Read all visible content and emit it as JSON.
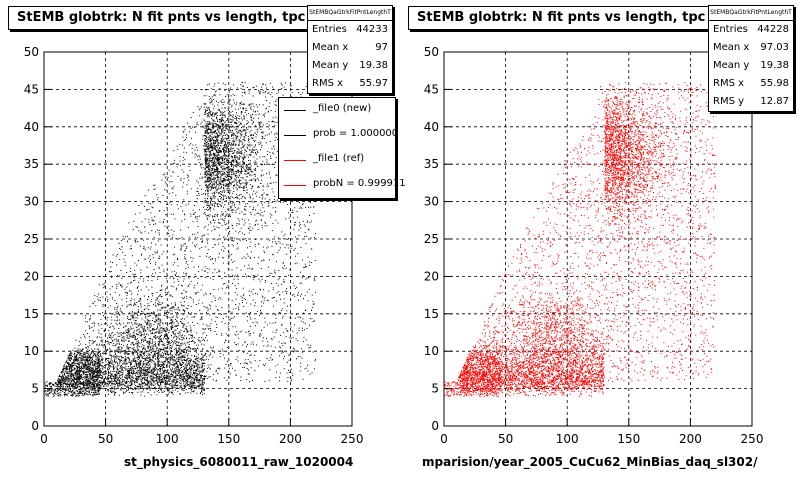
{
  "chart_data": [
    {
      "type": "scatter",
      "title": "StEMB globtrk: N fit pnts vs length, tpc",
      "xlabel": "st_physics_6080011_raw_1020004",
      "ylabel": "",
      "xlim": [
        0,
        250
      ],
      "ylim": [
        0,
        50
      ],
      "xticks": [
        "0",
        "50",
        "100",
        "150",
        "200",
        "250"
      ],
      "yticks": [
        "0",
        "5",
        "10",
        "15",
        "20",
        "25",
        "30",
        "35",
        "40",
        "45",
        "50"
      ],
      "grid": true,
      "color": "#000000",
      "stats": {
        "name": "StEMBQaGtrkFitPntLengthT",
        "rows": [
          {
            "label": "Entries",
            "value": "44233"
          },
          {
            "label": "Mean x",
            "value": "97"
          },
          {
            "label": "Mean y",
            "value": "19.38"
          },
          {
            "label": "RMS x",
            "value": "55.97"
          }
        ]
      },
      "legend": {
        "position": "top-right",
        "entries": [
          {
            "label": "_file0 (new)",
            "color": "#000000"
          },
          {
            "label": "prob = 1.000000",
            "color": "#000000"
          },
          {
            "label": "_file1 (ref)",
            "color": "#ff0000"
          },
          {
            "label": "probN = 0.999911",
            "color": "#ff0000"
          }
        ]
      }
    },
    {
      "type": "scatter",
      "title": "StEMB globtrk: N fit pnts vs length, tpc",
      "xlabel": "mparision/year_2005_CuCu62_MinBias_daq_sl302/",
      "ylabel": "",
      "xlim": [
        0,
        250
      ],
      "ylim": [
        0,
        50
      ],
      "xticks": [
        "0",
        "50",
        "100",
        "150",
        "200",
        "250"
      ],
      "yticks": [
        "0",
        "5",
        "10",
        "15",
        "20",
        "25",
        "30",
        "35",
        "40",
        "45",
        "50"
      ],
      "grid": true,
      "color": "#ff0000",
      "stats": {
        "name": "StEMBQaGtrkFitPntLengthT",
        "rows": [
          {
            "label": "Entries",
            "value": "44228"
          },
          {
            "label": "Mean x",
            "value": "97.03"
          },
          {
            "label": "Mean y",
            "value": "19.38"
          },
          {
            "label": "RMS x",
            "value": "55.98"
          },
          {
            "label": "RMS y",
            "value": "12.87"
          }
        ]
      }
    }
  ]
}
